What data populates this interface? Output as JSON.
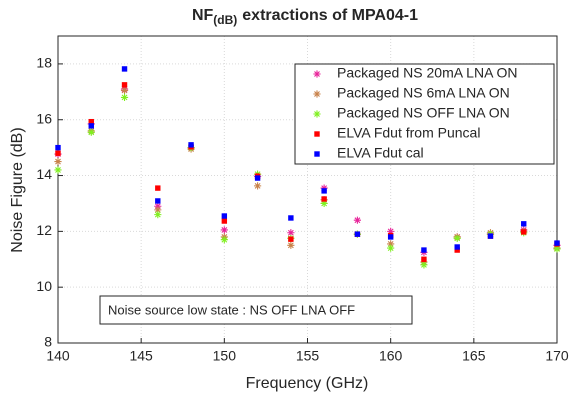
{
  "chart_data": {
    "type": "scatter",
    "title": "NF",
    "title_subscript": "(dB)",
    "title_rest": "extractions of MPA04-1",
    "xlabel": "Frequency (GHz)",
    "ylabel": "Noise Figure (dB)",
    "annotation": "Noise source low state : NS OFF LNA OFF",
    "x": [
      140,
      142,
      144,
      146,
      148,
      150,
      152,
      154,
      156,
      158,
      160,
      162,
      164,
      166,
      168,
      170
    ],
    "xlim": [
      140,
      170
    ],
    "xticks": [
      140,
      145,
      150,
      155,
      160,
      165,
      170
    ],
    "ylim": [
      8,
      19
    ],
    "yticks": [
      8,
      10,
      12,
      14,
      16,
      18
    ],
    "grid": true,
    "legend": "upper right",
    "series": [
      {
        "name": "Packaged NS 20mA LNA ON",
        "color": "#e8249a",
        "marker": "asterisk",
        "values": [
          14.77,
          15.85,
          17.1,
          12.9,
          15.0,
          12.05,
          13.97,
          11.95,
          13.55,
          12.4,
          12.0,
          11.25,
          11.8,
          11.9,
          12.05,
          11.5
        ]
      },
      {
        "name": "Packaged NS 6mA LNA ON",
        "color": "#c8824a",
        "marker": "asterisk",
        "values": [
          14.5,
          15.6,
          17.05,
          12.77,
          14.95,
          11.8,
          13.63,
          11.5,
          13.13,
          11.9,
          11.55,
          10.9,
          11.8,
          11.95,
          12.0,
          11.4
        ]
      },
      {
        "name": "Packaged NS OFF LNA ON",
        "color": "#80f020",
        "marker": "asterisk",
        "values": [
          14.2,
          15.55,
          16.8,
          12.6,
          15.0,
          11.7,
          14.05,
          11.75,
          13.0,
          11.9,
          11.4,
          10.8,
          11.75,
          11.9,
          11.95,
          11.37
        ]
      },
      {
        "name": "ELVA Fdut from Puncal",
        "color": "#ff0000",
        "marker": "square",
        "values": [
          14.8,
          15.93,
          17.25,
          13.55,
          15.03,
          12.37,
          13.98,
          11.72,
          13.16,
          11.9,
          11.85,
          11.0,
          11.33,
          11.83,
          11.98,
          11.55
        ]
      },
      {
        "name": "ELVA Fdut cal",
        "color": "#0000ff",
        "marker": "square",
        "values": [
          15.0,
          15.78,
          17.82,
          13.09,
          15.1,
          12.55,
          13.91,
          12.48,
          13.45,
          11.9,
          11.8,
          11.33,
          11.44,
          11.83,
          12.27,
          11.58
        ]
      }
    ]
  }
}
